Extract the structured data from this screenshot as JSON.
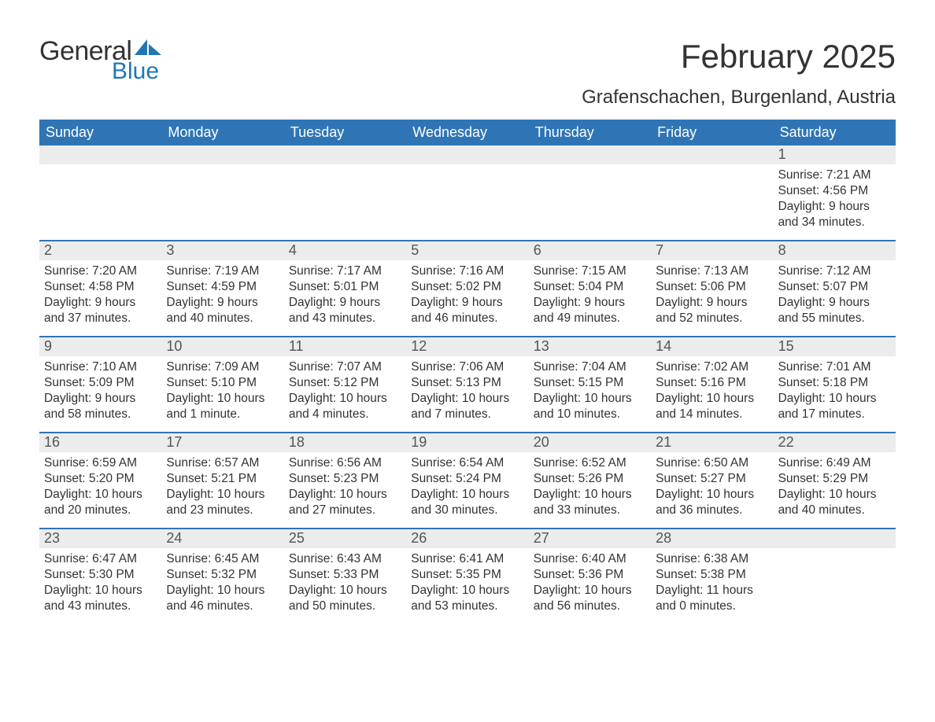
{
  "logo": {
    "general": "General",
    "blue": "Blue",
    "sail_color": "#1f77b4"
  },
  "title": "February 2025",
  "location": "Grafenschachen, Burgenland, Austria",
  "colors": {
    "header_bg": "#2f75b5",
    "header_text": "#ffffff",
    "daynum_bg": "#ececec",
    "daynum_text": "#555555",
    "body_text": "#333333",
    "week_divider": "#2f75b5",
    "background": "#ffffff"
  },
  "typography": {
    "title_fontsize": 42,
    "location_fontsize": 24,
    "weekday_fontsize": 18,
    "daynum_fontsize": 18,
    "body_fontsize": 15.5
  },
  "layout": {
    "columns": 7,
    "rows": 5,
    "week_start": "Sunday"
  },
  "weekdays": [
    "Sunday",
    "Monday",
    "Tuesday",
    "Wednesday",
    "Thursday",
    "Friday",
    "Saturday"
  ],
  "weeks": [
    [
      {
        "day": "",
        "sunrise": "",
        "sunset": "",
        "daylight": ""
      },
      {
        "day": "",
        "sunrise": "",
        "sunset": "",
        "daylight": ""
      },
      {
        "day": "",
        "sunrise": "",
        "sunset": "",
        "daylight": ""
      },
      {
        "day": "",
        "sunrise": "",
        "sunset": "",
        "daylight": ""
      },
      {
        "day": "",
        "sunrise": "",
        "sunset": "",
        "daylight": ""
      },
      {
        "day": "",
        "sunrise": "",
        "sunset": "",
        "daylight": ""
      },
      {
        "day": "1",
        "sunrise": "Sunrise: 7:21 AM",
        "sunset": "Sunset: 4:56 PM",
        "daylight": "Daylight: 9 hours and 34 minutes."
      }
    ],
    [
      {
        "day": "2",
        "sunrise": "Sunrise: 7:20 AM",
        "sunset": "Sunset: 4:58 PM",
        "daylight": "Daylight: 9 hours and 37 minutes."
      },
      {
        "day": "3",
        "sunrise": "Sunrise: 7:19 AM",
        "sunset": "Sunset: 4:59 PM",
        "daylight": "Daylight: 9 hours and 40 minutes."
      },
      {
        "day": "4",
        "sunrise": "Sunrise: 7:17 AM",
        "sunset": "Sunset: 5:01 PM",
        "daylight": "Daylight: 9 hours and 43 minutes."
      },
      {
        "day": "5",
        "sunrise": "Sunrise: 7:16 AM",
        "sunset": "Sunset: 5:02 PM",
        "daylight": "Daylight: 9 hours and 46 minutes."
      },
      {
        "day": "6",
        "sunrise": "Sunrise: 7:15 AM",
        "sunset": "Sunset: 5:04 PM",
        "daylight": "Daylight: 9 hours and 49 minutes."
      },
      {
        "day": "7",
        "sunrise": "Sunrise: 7:13 AM",
        "sunset": "Sunset: 5:06 PM",
        "daylight": "Daylight: 9 hours and 52 minutes."
      },
      {
        "day": "8",
        "sunrise": "Sunrise: 7:12 AM",
        "sunset": "Sunset: 5:07 PM",
        "daylight": "Daylight: 9 hours and 55 minutes."
      }
    ],
    [
      {
        "day": "9",
        "sunrise": "Sunrise: 7:10 AM",
        "sunset": "Sunset: 5:09 PM",
        "daylight": "Daylight: 9 hours and 58 minutes."
      },
      {
        "day": "10",
        "sunrise": "Sunrise: 7:09 AM",
        "sunset": "Sunset: 5:10 PM",
        "daylight": "Daylight: 10 hours and 1 minute."
      },
      {
        "day": "11",
        "sunrise": "Sunrise: 7:07 AM",
        "sunset": "Sunset: 5:12 PM",
        "daylight": "Daylight: 10 hours and 4 minutes."
      },
      {
        "day": "12",
        "sunrise": "Sunrise: 7:06 AM",
        "sunset": "Sunset: 5:13 PM",
        "daylight": "Daylight: 10 hours and 7 minutes."
      },
      {
        "day": "13",
        "sunrise": "Sunrise: 7:04 AM",
        "sunset": "Sunset: 5:15 PM",
        "daylight": "Daylight: 10 hours and 10 minutes."
      },
      {
        "day": "14",
        "sunrise": "Sunrise: 7:02 AM",
        "sunset": "Sunset: 5:16 PM",
        "daylight": "Daylight: 10 hours and 14 minutes."
      },
      {
        "day": "15",
        "sunrise": "Sunrise: 7:01 AM",
        "sunset": "Sunset: 5:18 PM",
        "daylight": "Daylight: 10 hours and 17 minutes."
      }
    ],
    [
      {
        "day": "16",
        "sunrise": "Sunrise: 6:59 AM",
        "sunset": "Sunset: 5:20 PM",
        "daylight": "Daylight: 10 hours and 20 minutes."
      },
      {
        "day": "17",
        "sunrise": "Sunrise: 6:57 AM",
        "sunset": "Sunset: 5:21 PM",
        "daylight": "Daylight: 10 hours and 23 minutes."
      },
      {
        "day": "18",
        "sunrise": "Sunrise: 6:56 AM",
        "sunset": "Sunset: 5:23 PM",
        "daylight": "Daylight: 10 hours and 27 minutes."
      },
      {
        "day": "19",
        "sunrise": "Sunrise: 6:54 AM",
        "sunset": "Sunset: 5:24 PM",
        "daylight": "Daylight: 10 hours and 30 minutes."
      },
      {
        "day": "20",
        "sunrise": "Sunrise: 6:52 AM",
        "sunset": "Sunset: 5:26 PM",
        "daylight": "Daylight: 10 hours and 33 minutes."
      },
      {
        "day": "21",
        "sunrise": "Sunrise: 6:50 AM",
        "sunset": "Sunset: 5:27 PM",
        "daylight": "Daylight: 10 hours and 36 minutes."
      },
      {
        "day": "22",
        "sunrise": "Sunrise: 6:49 AM",
        "sunset": "Sunset: 5:29 PM",
        "daylight": "Daylight: 10 hours and 40 minutes."
      }
    ],
    [
      {
        "day": "23",
        "sunrise": "Sunrise: 6:47 AM",
        "sunset": "Sunset: 5:30 PM",
        "daylight": "Daylight: 10 hours and 43 minutes."
      },
      {
        "day": "24",
        "sunrise": "Sunrise: 6:45 AM",
        "sunset": "Sunset: 5:32 PM",
        "daylight": "Daylight: 10 hours and 46 minutes."
      },
      {
        "day": "25",
        "sunrise": "Sunrise: 6:43 AM",
        "sunset": "Sunset: 5:33 PM",
        "daylight": "Daylight: 10 hours and 50 minutes."
      },
      {
        "day": "26",
        "sunrise": "Sunrise: 6:41 AM",
        "sunset": "Sunset: 5:35 PM",
        "daylight": "Daylight: 10 hours and 53 minutes."
      },
      {
        "day": "27",
        "sunrise": "Sunrise: 6:40 AM",
        "sunset": "Sunset: 5:36 PM",
        "daylight": "Daylight: 10 hours and 56 minutes."
      },
      {
        "day": "28",
        "sunrise": "Sunrise: 6:38 AM",
        "sunset": "Sunset: 5:38 PM",
        "daylight": "Daylight: 11 hours and 0 minutes."
      },
      {
        "day": "",
        "sunrise": "",
        "sunset": "",
        "daylight": ""
      }
    ]
  ]
}
